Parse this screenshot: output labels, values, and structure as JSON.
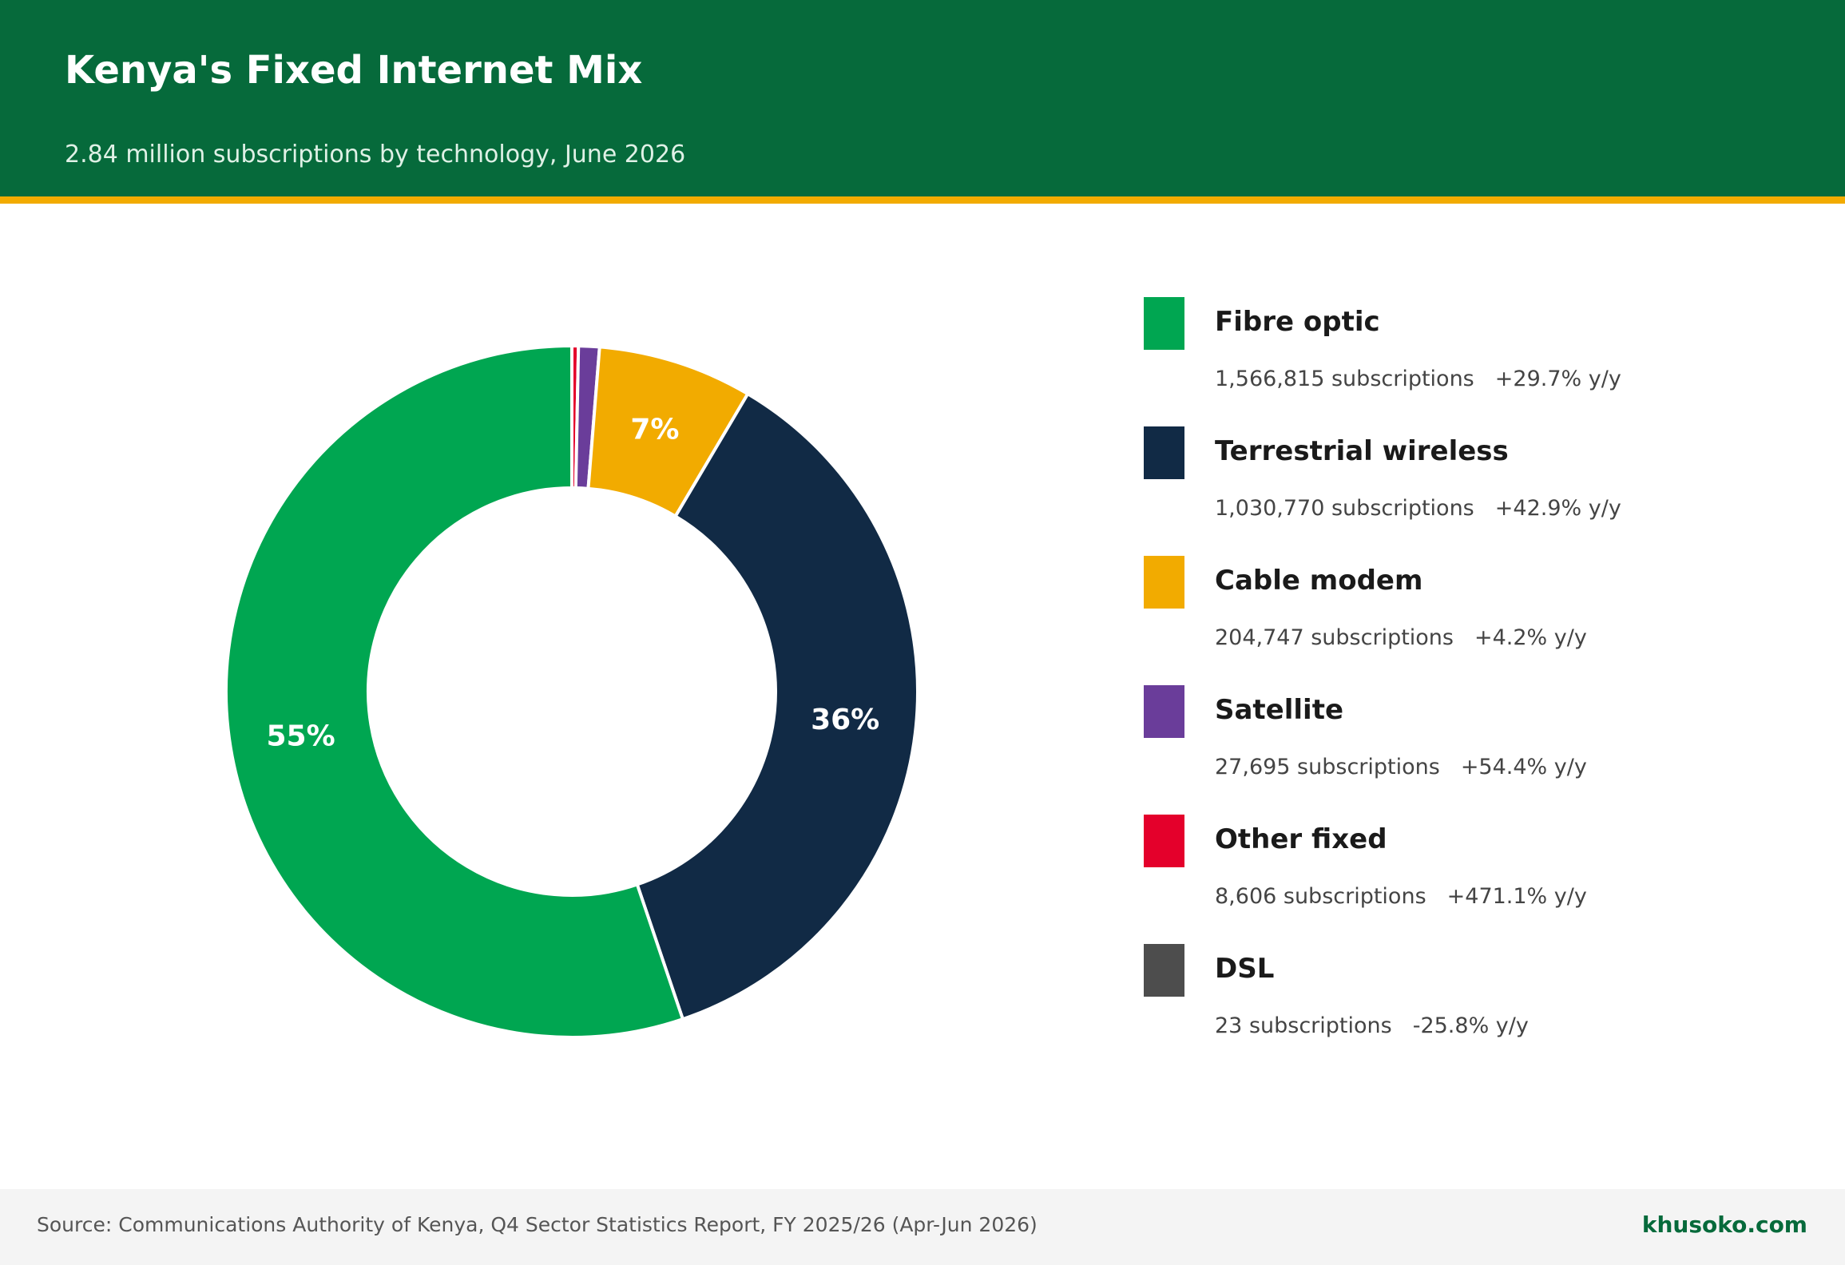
{
  "header": {
    "title": "Kenya's Fixed Internet Mix",
    "subtitle": "2.84 million subscriptions by technology, June 2026"
  },
  "colors": {
    "header_bg": "#066a3b",
    "accent_stripe": "#f2ab00"
  },
  "chart_data": {
    "type": "pie",
    "variant": "donut",
    "title": "Kenya's Fixed Internet Mix",
    "subtitle": "2.84 million subscriptions by technology, June 2026",
    "legend_position": "right",
    "slices": [
      {
        "name": "Fibre optic",
        "value": 1566815,
        "color": "#00a651",
        "pct_label": "55%",
        "change": "+29.7% y/y",
        "detail": "1,566,815 subscriptions"
      },
      {
        "name": "Terrestrial wireless",
        "value": 1030770,
        "color": "#112a45",
        "pct_label": "36%",
        "change": "+42.9% y/y",
        "detail": "1,030,770 subscriptions"
      },
      {
        "name": "Cable modem",
        "value": 204747,
        "color": "#f2ab00",
        "pct_label": "7%",
        "change": "+4.2% y/y",
        "detail": "204,747 subscriptions"
      },
      {
        "name": "Satellite",
        "value": 27695,
        "color": "#6a3d9a",
        "pct_label": "",
        "change": "+54.4% y/y",
        "detail": "27,695 subscriptions"
      },
      {
        "name": "Other fixed",
        "value": 8606,
        "color": "#e4002b",
        "pct_label": "",
        "change": "+471.1% y/y",
        "detail": "8,606 subscriptions"
      },
      {
        "name": "DSL",
        "value": 23,
        "color": "#4d4d4d",
        "pct_label": "",
        "change": "-25.8% y/y",
        "detail": "23 subscriptions"
      }
    ],
    "draw_order": [
      "Other fixed",
      "Satellite",
      "Cable modem",
      "Terrestrial wireless",
      "Fibre optic",
      "DSL"
    ],
    "start": "top",
    "direction": "clockwise"
  },
  "footer": {
    "source": "Source: Communications Authority of Kenya, Q4 Sector Statistics Report, FY 2025/26 (Apr-Jun 2026)",
    "brand": "khusoko.com"
  }
}
